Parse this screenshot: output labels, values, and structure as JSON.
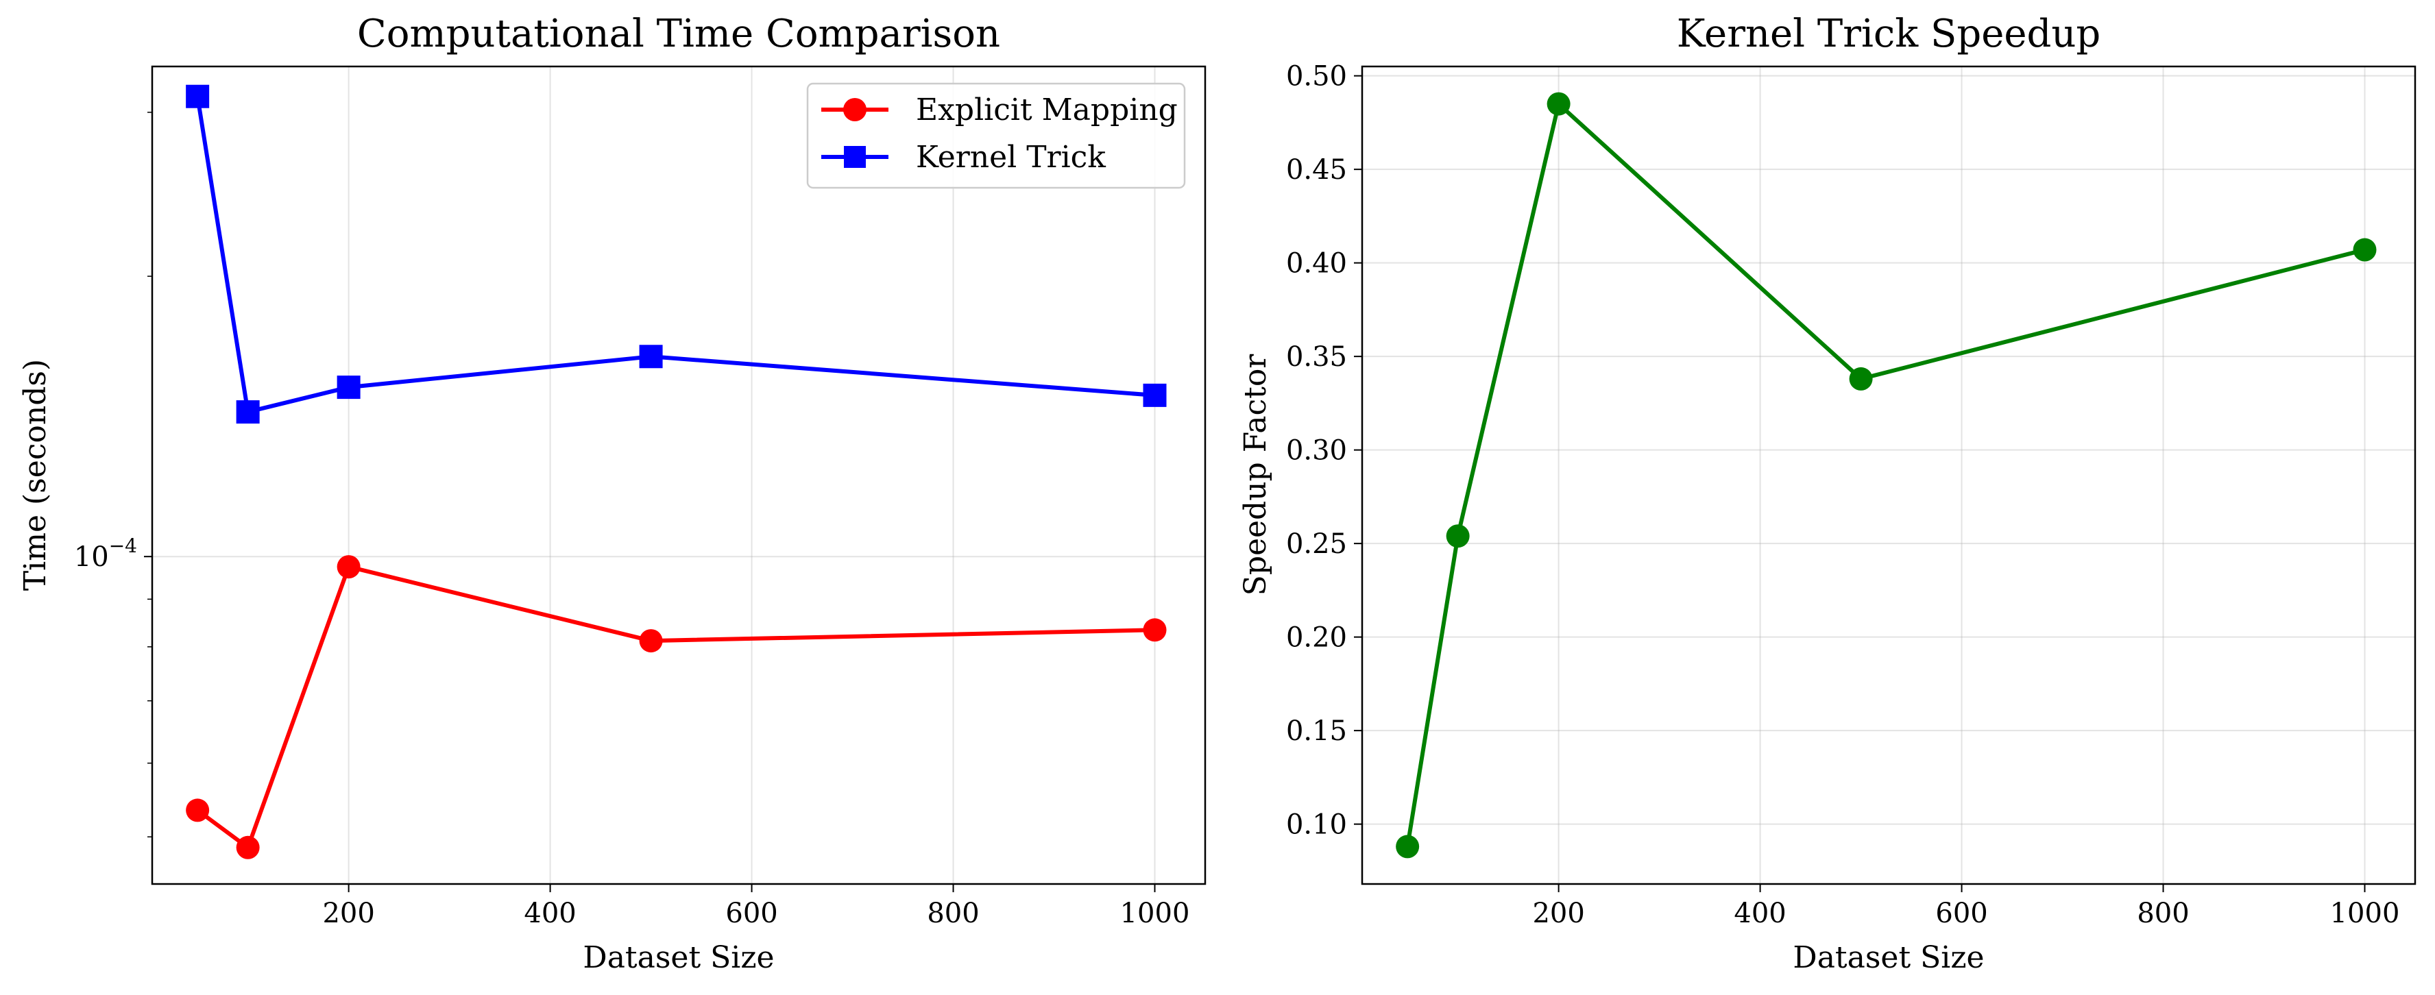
{
  "chart_data": [
    {
      "type": "line",
      "title": "Computational Time Comparison",
      "xlabel": "Dataset Size",
      "ylabel": "Time (seconds)",
      "yscale": "log",
      "xlim": [
        5,
        1050
      ],
      "ylim": [
        4.45e-05,
        0.000336
      ],
      "xticks": [
        200,
        400,
        600,
        800,
        1000
      ],
      "xtick_labels": [
        "200",
        "400",
        "600",
        "800",
        "1000"
      ],
      "yticks_major": [
        0.0001
      ],
      "ytick_labels": [
        "10",
        "−4"
      ],
      "grid": true,
      "legend": "top-right",
      "series": [
        {
          "name": "Explicit Mapping",
          "color": "#ff0000",
          "marker": "circle",
          "x": [
            50,
            100,
            200,
            500,
            1000
          ],
          "y": [
            5.34e-05,
            4.87e-05,
            9.75e-05,
            8.12e-05,
            8.34e-05
          ]
        },
        {
          "name": "Kernel Trick",
          "color": "#0000ff",
          "marker": "square",
          "x": [
            50,
            100,
            200,
            500,
            1000
          ],
          "y": [
            0.000312,
            0.000143,
            0.000152,
            0.000164,
            0.000149
          ]
        }
      ]
    },
    {
      "type": "line",
      "title": "Kernel Trick Speedup",
      "xlabel": "Dataset Size",
      "ylabel": "Speedup Factor",
      "xlim": [
        5,
        1050
      ],
      "ylim": [
        0.068,
        0.505
      ],
      "xticks": [
        200,
        400,
        600,
        800,
        1000
      ],
      "xtick_labels": [
        "200",
        "400",
        "600",
        "800",
        "1000"
      ],
      "yticks": [
        0.1,
        0.15,
        0.2,
        0.25,
        0.3,
        0.35,
        0.4,
        0.45,
        0.5
      ],
      "ytick_labels": [
        "0.10",
        "0.15",
        "0.20",
        "0.25",
        "0.30",
        "0.35",
        "0.40",
        "0.45",
        "0.50"
      ],
      "grid": true,
      "series": [
        {
          "color": "#008000",
          "marker": "circle",
          "x": [
            50,
            100,
            200,
            500,
            1000
          ],
          "y": [
            0.088,
            0.254,
            0.485,
            0.338,
            0.407
          ]
        }
      ]
    }
  ]
}
